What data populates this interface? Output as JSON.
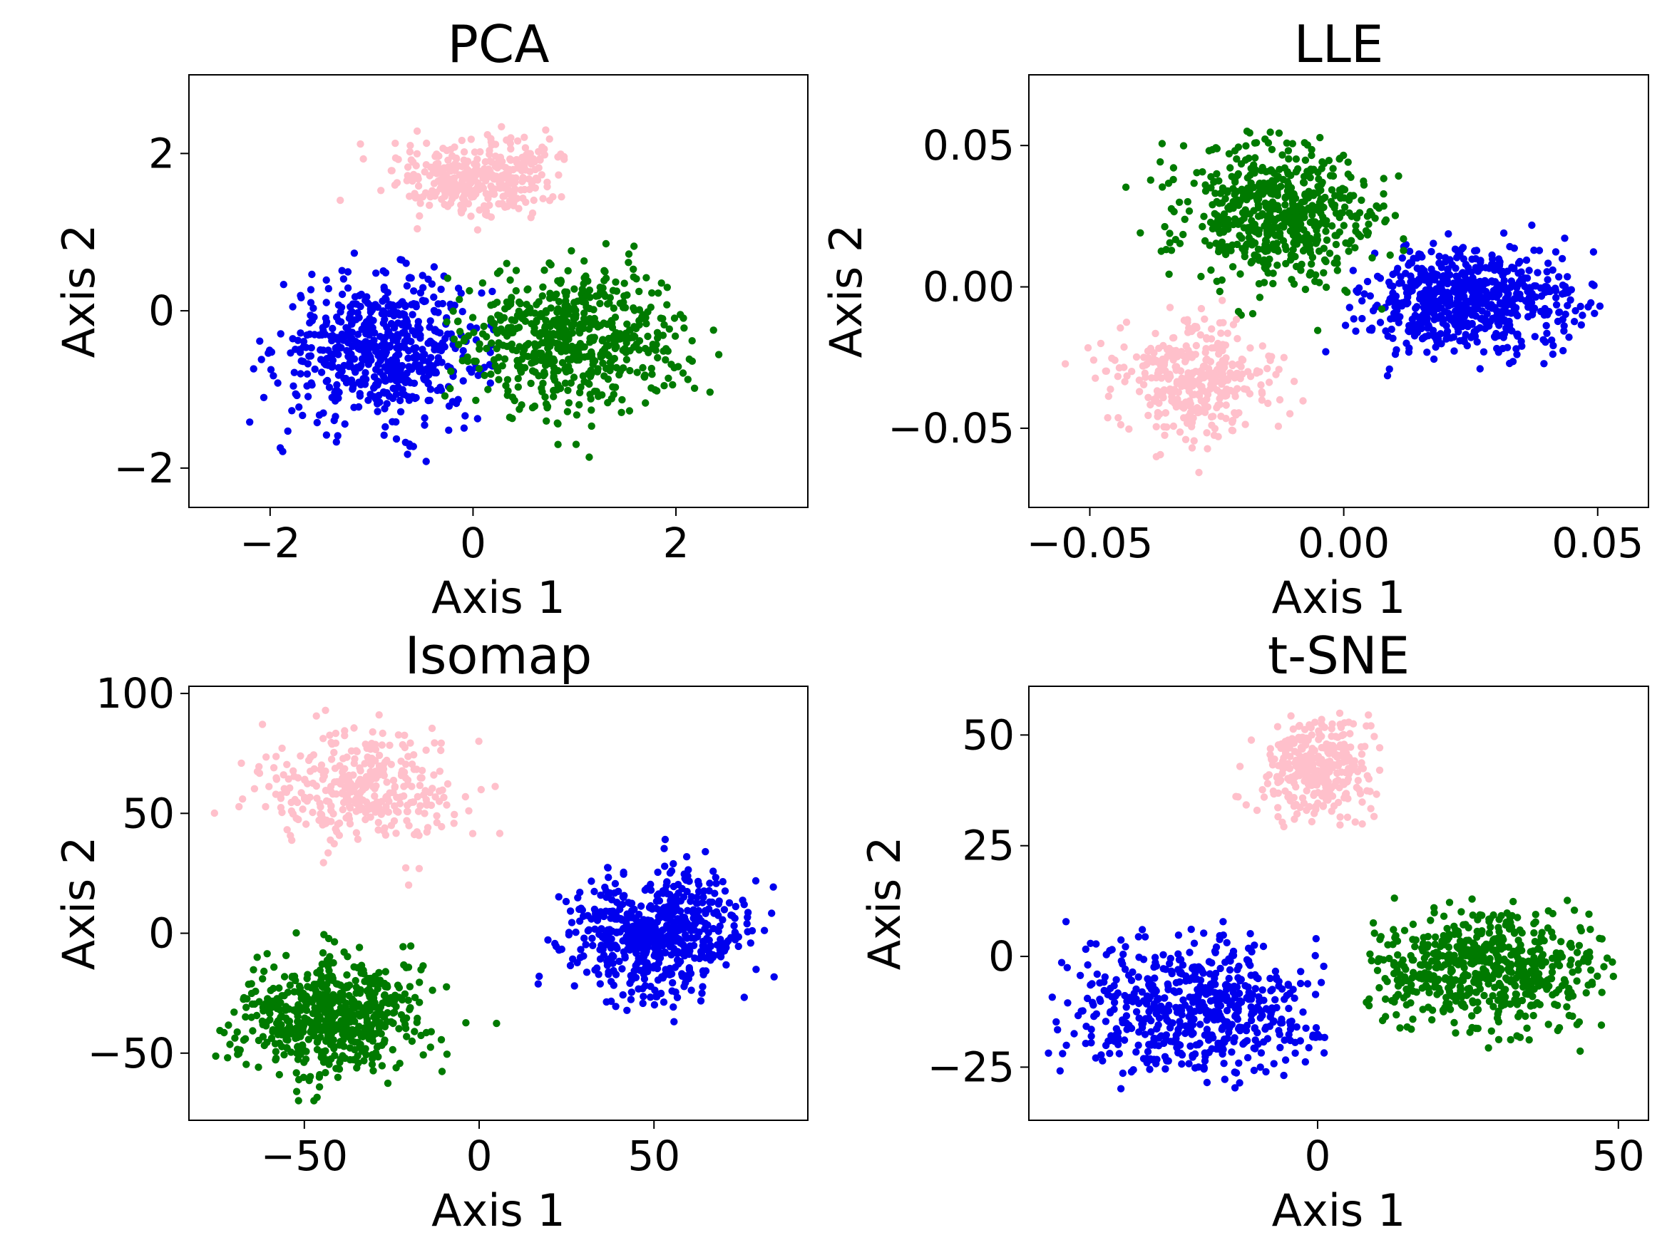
{
  "chart_data": [
    {
      "type": "scatter",
      "title": "PCA",
      "xlabel": "Axis 1",
      "ylabel": "Axis 2",
      "xlim": [
        -2.8,
        3.3
      ],
      "ylim": [
        -2.5,
        3.0
      ],
      "xticks": [
        -2,
        0,
        2
      ],
      "xtick_labels": [
        "−2",
        "0",
        "2"
      ],
      "yticks": [
        -2,
        0,
        2
      ],
      "ytick_labels": [
        "−2",
        "0",
        "2"
      ],
      "grid": false,
      "legend": "none",
      "series": [
        {
          "color": "#0000ee",
          "count": 600,
          "center": [
            -0.9,
            -0.5
          ],
          "spread": [
            0.5,
            0.45
          ],
          "extent": [
            -2.5,
            0.3,
            -2.2,
            1.0
          ]
        },
        {
          "color": "#007a00",
          "count": 600,
          "center": [
            1.0,
            -0.35
          ],
          "spread": [
            0.55,
            0.45
          ],
          "extent": [
            -0.3,
            3.0,
            -2.1,
            1.1
          ]
        },
        {
          "color": "#ffc0cb",
          "count": 350,
          "center": [
            0.1,
            1.7
          ],
          "spread": [
            0.45,
            0.25
          ],
          "extent": [
            -1.8,
            0.9,
            0.9,
            2.7
          ]
        }
      ]
    },
    {
      "type": "scatter",
      "title": "LLE",
      "xlabel": "Axis 1",
      "ylabel": "Axis 2",
      "xlim": [
        -0.062,
        0.06
      ],
      "ylim": [
        -0.078,
        0.075
      ],
      "xticks": [
        -0.05,
        0.0,
        0.05
      ],
      "xtick_labels": [
        "−0.05",
        "0.00",
        "0.05"
      ],
      "yticks": [
        -0.05,
        0.0,
        0.05
      ],
      "ytick_labels": [
        "−0.05",
        "0.00",
        "0.05"
      ],
      "grid": false,
      "legend": "none",
      "series": [
        {
          "color": "#0000ee",
          "count": 650,
          "center": [
            0.025,
            -0.005
          ],
          "spread": [
            0.01,
            0.009
          ],
          "extent": [
            -0.01,
            0.056,
            -0.05,
            0.022
          ]
        },
        {
          "color": "#007a00",
          "count": 600,
          "center": [
            -0.013,
            0.025
          ],
          "spread": [
            0.01,
            0.012
          ],
          "extent": [
            -0.045,
            0.012,
            -0.02,
            0.069
          ]
        },
        {
          "color": "#ffc0cb",
          "count": 350,
          "center": [
            -0.03,
            -0.032
          ],
          "spread": [
            0.008,
            0.011
          ],
          "extent": [
            -0.056,
            -0.008,
            -0.072,
            0.0
          ]
        }
      ]
    },
    {
      "type": "scatter",
      "title": "Isomap",
      "xlabel": "Axis 1",
      "ylabel": "Axis 2",
      "xlim": [
        -83,
        94
      ],
      "ylim": [
        -78,
        103
      ],
      "xticks": [
        -50,
        0,
        50
      ],
      "xtick_labels": [
        "−50",
        "0",
        "50"
      ],
      "yticks": [
        -50,
        0,
        50,
        100
      ],
      "ytick_labels": [
        "−50",
        "0",
        "50",
        "100"
      ],
      "grid": false,
      "legend": "none",
      "series": [
        {
          "color": "#0000ee",
          "count": 600,
          "center": [
            50,
            0
          ],
          "spread": [
            13,
            13
          ],
          "extent": [
            15,
            85,
            -55,
            52
          ]
        },
        {
          "color": "#007a00",
          "count": 600,
          "center": [
            -42,
            -35
          ],
          "spread": [
            14,
            12
          ],
          "extent": [
            -76,
            20,
            -70,
            20
          ]
        },
        {
          "color": "#ffc0cb",
          "count": 350,
          "center": [
            -35,
            60
          ],
          "spread": [
            15,
            12
          ],
          "extent": [
            -76,
            18,
            15,
            97
          ]
        }
      ]
    },
    {
      "type": "scatter",
      "title": "t-SNE",
      "xlabel": "Axis 1",
      "ylabel": "Axis 2",
      "xlim": [
        -48,
        55
      ],
      "ylim": [
        -37,
        61
      ],
      "xticks": [
        0,
        50
      ],
      "xtick_labels": [
        "0",
        "50"
      ],
      "yticks": [
        -25,
        0,
        25,
        50
      ],
      "ytick_labels": [
        "−25",
        "0",
        "25",
        "50"
      ],
      "grid": false,
      "legend": "none",
      "series": [
        {
          "color": "#0000ee",
          "count": 600,
          "center": [
            -20,
            -12
          ],
          "spread": [
            11,
            8
          ],
          "extent": [
            -45,
            2,
            -31,
            8
          ]
        },
        {
          "color": "#007a00",
          "count": 600,
          "center": [
            28,
            -3
          ],
          "spread": [
            10,
            6.5
          ],
          "extent": [
            8,
            50,
            -22,
            14
          ]
        },
        {
          "color": "#ffc0cb",
          "count": 330,
          "center": [
            0,
            42
          ],
          "spread": [
            5,
            6
          ],
          "extent": [
            -14,
            11,
            29,
            56
          ]
        }
      ]
    }
  ]
}
